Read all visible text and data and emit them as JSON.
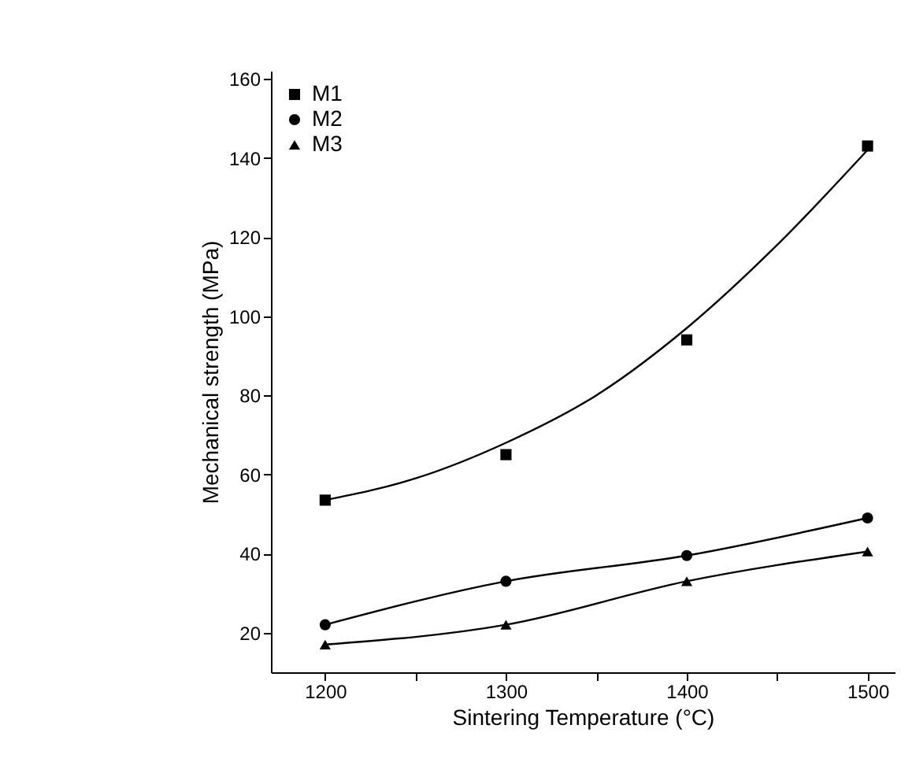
{
  "chart_data": {
    "type": "line",
    "xlabel": "Sintering Temperature (°C)",
    "ylabel": "Mechanical strength (MPa)",
    "x": [
      1200,
      1300,
      1400,
      1500
    ],
    "series": [
      {
        "name": "M1",
        "type": "scatter",
        "marker": "square",
        "color": "#000000",
        "values": [
          53.5,
          65,
          94,
          143
        ]
      },
      {
        "type": "line",
        "marker": "none",
        "color": "#000000",
        "x": [
          1200,
          1250,
          1300,
          1350,
          1400,
          1450,
          1500
        ],
        "values": [
          53.5,
          59,
          68,
          80,
          97,
          118,
          142
        ]
      },
      {
        "name": "M2",
        "type": "line",
        "marker": "circle",
        "color": "#000000",
        "values": [
          22,
          33,
          39.5,
          49
        ]
      },
      {
        "name": "M3",
        "type": "line",
        "marker": "triangle",
        "color": "#000000",
        "values": [
          17,
          22,
          33,
          40.5
        ]
      }
    ],
    "xlim": [
      1170,
      1515
    ],
    "xticks": [
      1200,
      {
        "value": 1250,
        "label": null
      },
      1300,
      {
        "value": 1350,
        "label": null
      },
      1400,
      {
        "value": 1450,
        "label": null
      },
      1500
    ],
    "ylim": [
      10,
      162
    ],
    "yticks": [
      20,
      40,
      60,
      80,
      100,
      120,
      140,
      160
    ],
    "grid": false,
    "legend": "top left",
    "line_style": "solid"
  }
}
